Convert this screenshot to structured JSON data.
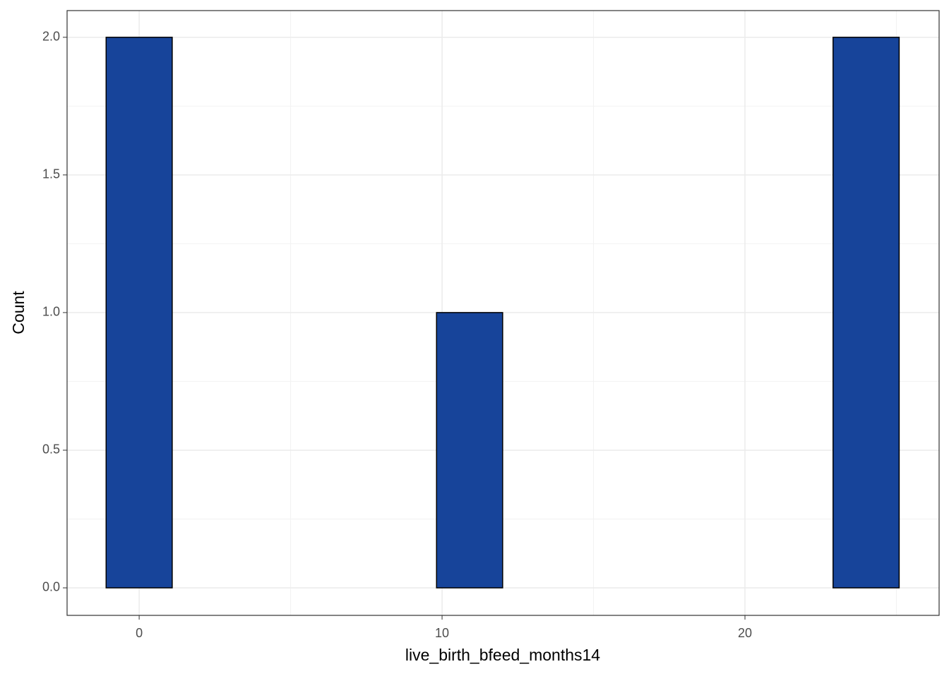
{
  "chart_data": {
    "type": "histogram",
    "x_label": "live_birth_bfeed_months14",
    "y_label": "Count",
    "bins": [
      -1.091,
      1.091,
      3.273,
      5.455,
      7.636,
      9.818,
      12,
      14.182,
      16.364,
      18.545,
      20.727,
      22.909,
      25.091
    ],
    "values": [
      2,
      0,
      0,
      0,
      0,
      1,
      0,
      0,
      0,
      0,
      0,
      2
    ],
    "color": "#17449a",
    "edge_color": "#000000",
    "xlim": [
      -2.38,
      26.41
    ],
    "ylim": [
      -0.1,
      2.097
    ],
    "xticks": [
      0,
      10,
      20
    ],
    "yticks": [
      {
        "value": 0,
        "label": "0.0"
      },
      0.5,
      {
        "value": 1,
        "label": "1.0"
      },
      1.5,
      {
        "value": 2,
        "label": "2.0"
      }
    ],
    "x_minor_grid": [
      5,
      15,
      25
    ],
    "y_minor_grid": [
      0.25,
      0.75,
      1.25,
      1.75
    ],
    "grid": true
  }
}
